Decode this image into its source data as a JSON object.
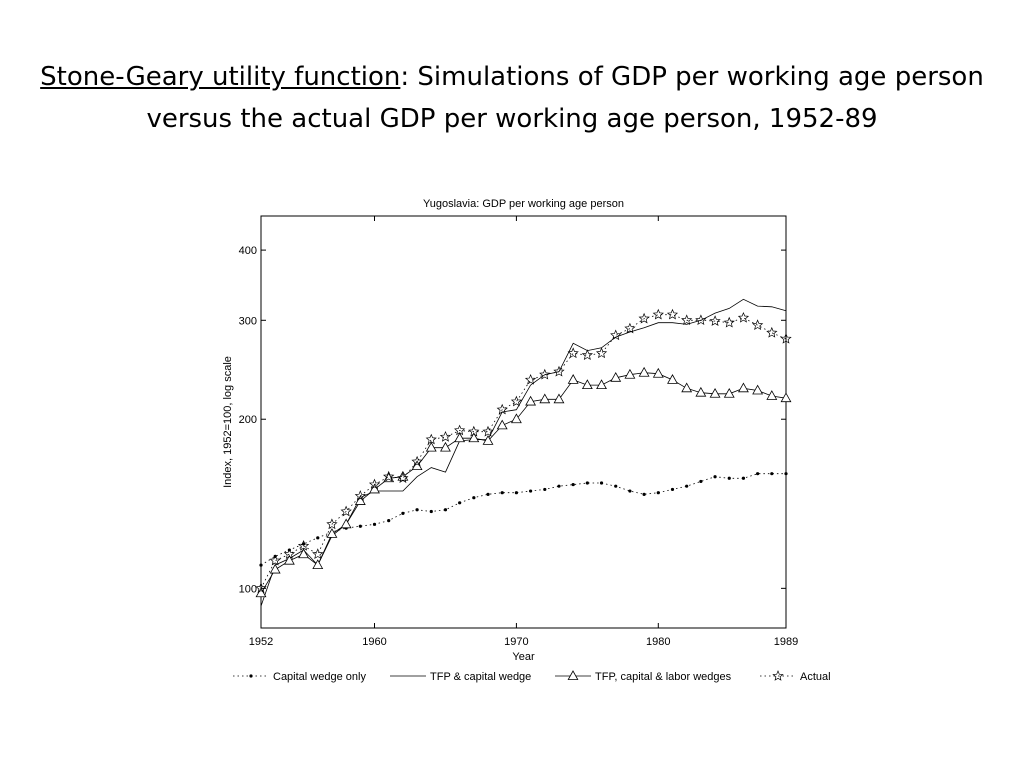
{
  "slide": {
    "title_underlined": "Stone-Geary utility function",
    "title_rest": ": Simulations of GDP per working age person versus the actual GDP per working age person, 1952-89"
  },
  "chart_data": {
    "type": "line",
    "title": "Yugoslavia: GDP per working age person",
    "xlabel": "Year",
    "ylabel": "Index, 1952=100, log scale",
    "xlim": [
      1952,
      1989
    ],
    "ylim": [
      85,
      460
    ],
    "y_scale": "log",
    "x_ticks": [
      1952,
      1960,
      1970,
      1980,
      1989
    ],
    "y_ticks": [
      100,
      200,
      300,
      400
    ],
    "grid": false,
    "legend_position": "bottom",
    "x": [
      1952,
      1953,
      1954,
      1955,
      1956,
      1957,
      1958,
      1959,
      1960,
      1961,
      1962,
      1963,
      1964,
      1965,
      1966,
      1967,
      1968,
      1969,
      1970,
      1971,
      1972,
      1973,
      1974,
      1975,
      1976,
      1977,
      1978,
      1979,
      1980,
      1981,
      1982,
      1983,
      1984,
      1985,
      1986,
      1987,
      1988,
      1989
    ],
    "series": [
      {
        "name": "Capital wedge only",
        "style": "dotted-dot",
        "values": [
          110,
          114,
          117,
          120,
          123,
          126,
          128,
          129,
          130,
          132,
          136,
          138,
          137,
          138,
          142,
          145,
          147,
          148,
          148,
          149,
          150,
          152,
          153,
          154,
          154,
          152,
          149,
          147,
          148,
          150,
          152,
          155,
          158,
          157,
          157,
          160,
          160,
          160
        ]
      },
      {
        "name": "TFP & capital wedge",
        "style": "solid",
        "values": [
          93,
          110,
          113,
          117,
          110,
          124,
          130,
          145,
          149,
          149,
          149,
          158,
          164,
          161,
          183,
          184,
          184,
          206,
          208,
          230,
          240,
          243,
          273,
          265,
          268,
          280,
          286,
          291,
          297,
          297,
          295,
          300,
          309,
          315,
          327,
          318,
          317,
          312
        ]
      },
      {
        "name": "TFP, capital & labor wedges",
        "style": "solid-triangle",
        "values": [
          98,
          108,
          112,
          115,
          110,
          125,
          130,
          143,
          150,
          157,
          158,
          165,
          178,
          178,
          185,
          185,
          183,
          195,
          200,
          215,
          217,
          217,
          235,
          230,
          230,
          237,
          240,
          242,
          241,
          235,
          227,
          223,
          222,
          222,
          227,
          225,
          220,
          218
        ]
      },
      {
        "name": "Actual",
        "style": "dotted-star",
        "values": [
          100,
          112,
          115,
          119,
          115,
          130,
          137,
          146,
          153,
          158,
          157,
          168,
          184,
          186,
          191,
          190,
          190,
          208,
          215,
          235,
          240,
          243,
          262,
          260,
          262,
          282,
          290,
          302,
          307,
          307,
          300,
          300,
          299,
          297,
          303,
          294,
          285,
          278
        ]
      }
    ]
  }
}
